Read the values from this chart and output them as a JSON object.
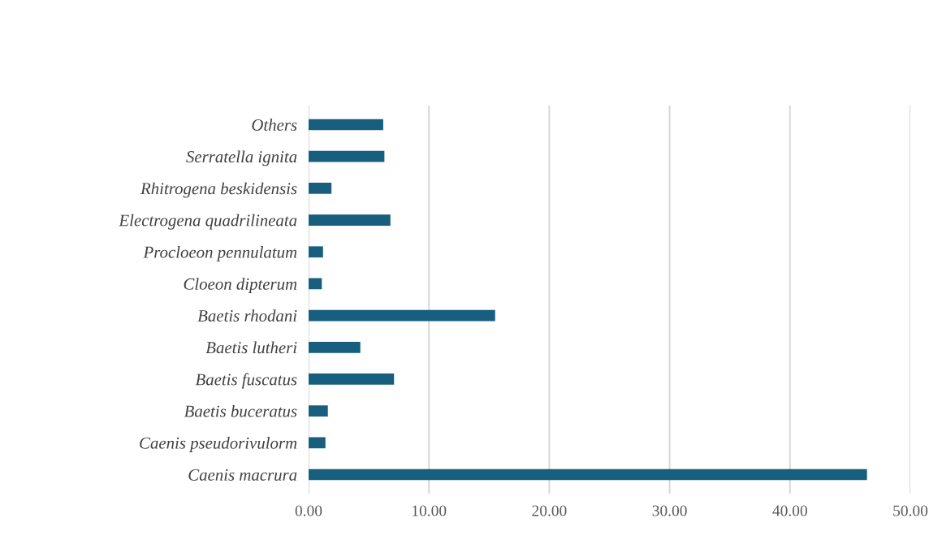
{
  "chart_data": {
    "type": "bar",
    "orientation": "horizontal",
    "categories": [
      "Others",
      "Serratella ignita",
      "Rhitrogena beskidensis",
      "Electrogena quadrilineata",
      "Procloeon pennulatum",
      "Cloeon dipterum",
      "Baetis rhodani",
      "Baetis lutheri",
      "Baetis fuscatus",
      "Baetis buceratus",
      "Caenis pseudorivulorm",
      "Caenis macrura"
    ],
    "values": [
      6.2,
      6.3,
      1.9,
      6.8,
      1.2,
      1.1,
      15.5,
      4.3,
      7.1,
      1.6,
      1.4,
      46.4
    ],
    "color": "#175e7f",
    "xlim": [
      0,
      50
    ],
    "xticks": [
      {
        "value": 0,
        "label": "0.00"
      },
      {
        "value": 10,
        "label": "10.00"
      },
      {
        "value": 20,
        "label": "20.00"
      },
      {
        "value": 30,
        "label": "30.00"
      },
      {
        "value": 40,
        "label": "40.00"
      },
      {
        "value": 50,
        "label": "50.00"
      }
    ],
    "grid": "x",
    "legend": false
  }
}
